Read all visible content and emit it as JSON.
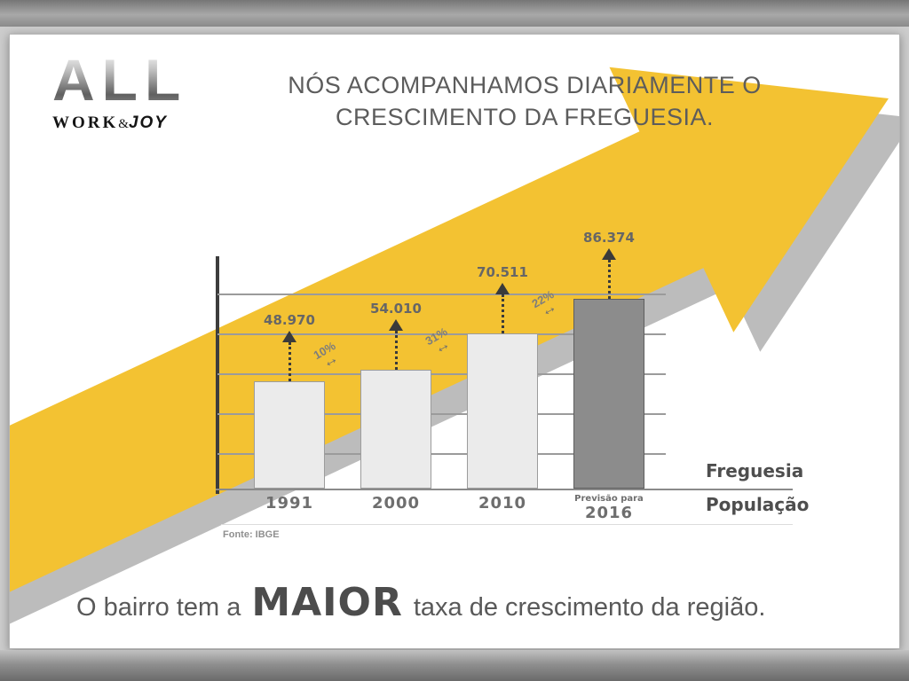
{
  "logo": {
    "name": "ALL",
    "tagline_work": "WORK",
    "tagline_amp": "&",
    "tagline_joy": "JOY"
  },
  "title": {
    "line1": "NÓS ACOMPANHAMOS DIARIAMENTE O",
    "line2": "CRESCIMENTO DA FREGUESIA."
  },
  "chart_data": {
    "type": "bar",
    "categories": [
      "1991",
      "2000",
      "2010",
      "2016"
    ],
    "x_labels": [
      {
        "top": "",
        "main": "1991"
      },
      {
        "top": "",
        "main": "2000"
      },
      {
        "top": "",
        "main": "2010"
      },
      {
        "top": "Previsão para",
        "main": "2016"
      }
    ],
    "values": [
      48970,
      54010,
      70511,
      86374
    ],
    "value_labels": [
      "48.970",
      "54.010",
      "70.511",
      "86.374"
    ],
    "growth_labels": [
      "10%",
      "31%",
      "22%"
    ],
    "right_label_top": "Freguesia",
    "right_label_bottom": "População",
    "source": "Fonte: IBGE",
    "bar_colors": [
      "#ebebeb",
      "#ebebeb",
      "#ebebeb",
      "#8c8c8c"
    ],
    "grid": true,
    "legend": "none",
    "ylabel": "",
    "xlabel": ""
  },
  "footer": {
    "prefix": "O bairro tem a",
    "highlight": "MAIOR",
    "suffix": "taxa de crescimento da região."
  },
  "colors": {
    "arrow": "#f3c232",
    "arrow_shadow": "#bcbcbc",
    "text": "#5c5c5c"
  }
}
